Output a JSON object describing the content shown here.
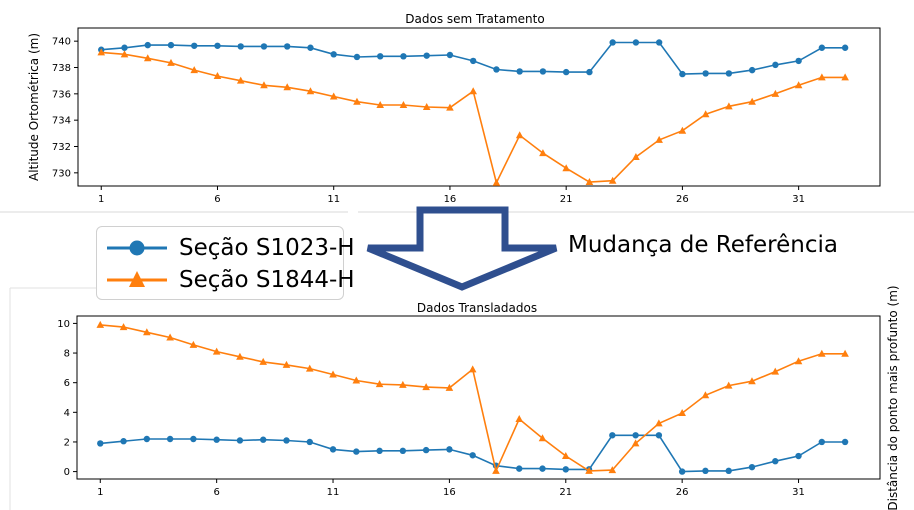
{
  "annotation": {
    "text": "Mudança de Referência"
  },
  "colors": {
    "series1": "#1f77b4",
    "series2": "#ff7f0e",
    "arrow_fill": "#ffffff",
    "arrow_stroke": "#2f4f8f"
  },
  "legend": [
    {
      "name": "Seção S1023-H",
      "marker": "circle"
    },
    {
      "name": "Seção S1844-H",
      "marker": "triangle"
    }
  ],
  "chart_data": [
    {
      "type": "line",
      "title": "Dados sem Tratamento",
      "xlabel": "",
      "ylabel": "Altitude Ortométrica (m)",
      "xticks": [
        1,
        6,
        11,
        16,
        21,
        26,
        31
      ],
      "yticks": [
        730,
        732,
        734,
        736,
        738,
        740
      ],
      "ylim": [
        729,
        741
      ],
      "xlim": [
        0,
        34.5
      ],
      "x": [
        1,
        2,
        3,
        4,
        5,
        6,
        7,
        8,
        9,
        10,
        11,
        12,
        13,
        14,
        15,
        16,
        17,
        18,
        19,
        20,
        21,
        22,
        23,
        24,
        25,
        26,
        27,
        28,
        29,
        30,
        31,
        32,
        33
      ],
      "series": [
        {
          "name": "Seção S1023-H",
          "marker": "circle",
          "values": [
            739.35,
            739.5,
            739.7,
            739.7,
            739.65,
            739.65,
            739.6,
            739.6,
            739.6,
            739.5,
            739.0,
            738.8,
            738.85,
            738.85,
            738.9,
            738.95,
            738.5,
            737.85,
            737.7,
            737.7,
            737.65,
            737.65,
            739.9,
            739.9,
            739.9,
            737.5,
            737.55,
            737.55,
            737.8,
            738.2,
            738.5,
            739.5,
            739.5
          ]
        },
        {
          "name": "Seção S1844-H",
          "marker": "triangle",
          "values": [
            739.15,
            739.0,
            738.7,
            738.35,
            737.8,
            737.35,
            737.0,
            736.65,
            736.5,
            736.2,
            735.8,
            735.4,
            735.15,
            735.15,
            735.0,
            734.95,
            736.2,
            729.25,
            732.85,
            731.5,
            730.35,
            729.3,
            729.4,
            731.2,
            732.5,
            733.2,
            734.45,
            735.05,
            735.4,
            736.0,
            736.65,
            737.25,
            737.25
          ]
        }
      ]
    },
    {
      "type": "line",
      "title": "Dados Transladados",
      "xlabel": "",
      "ylabel": "Distância do ponto mais profunto (m)",
      "xticks": [
        1,
        6,
        11,
        16,
        21,
        26,
        31
      ],
      "yticks": [
        0,
        2,
        4,
        6,
        8,
        10
      ],
      "ylim": [
        -0.5,
        10.5
      ],
      "xlim": [
        0,
        34.5
      ],
      "x": [
        1,
        2,
        3,
        4,
        5,
        6,
        7,
        8,
        9,
        10,
        11,
        12,
        13,
        14,
        15,
        16,
        17,
        18,
        19,
        20,
        21,
        22,
        23,
        24,
        25,
        26,
        27,
        28,
        29,
        30,
        31,
        32,
        33
      ],
      "series": [
        {
          "name": "Seção S1023-H",
          "marker": "circle",
          "values": [
            1.9,
            2.05,
            2.2,
            2.2,
            2.2,
            2.15,
            2.1,
            2.15,
            2.1,
            2.0,
            1.5,
            1.35,
            1.4,
            1.4,
            1.45,
            1.5,
            1.1,
            0.4,
            0.2,
            0.2,
            0.15,
            0.15,
            2.45,
            2.45,
            2.45,
            0.0,
            0.05,
            0.05,
            0.3,
            0.7,
            1.05,
            2.0,
            2.0
          ]
        },
        {
          "name": "Seção S1844-H",
          "marker": "triangle",
          "values": [
            9.9,
            9.75,
            9.4,
            9.05,
            8.55,
            8.1,
            7.75,
            7.4,
            7.2,
            6.95,
            6.55,
            6.15,
            5.9,
            5.85,
            5.7,
            5.65,
            6.9,
            0.05,
            3.55,
            2.25,
            1.05,
            0.05,
            0.1,
            1.9,
            3.25,
            3.95,
            5.15,
            5.8,
            6.1,
            6.75,
            7.45,
            7.95,
            7.95
          ]
        }
      ]
    }
  ]
}
